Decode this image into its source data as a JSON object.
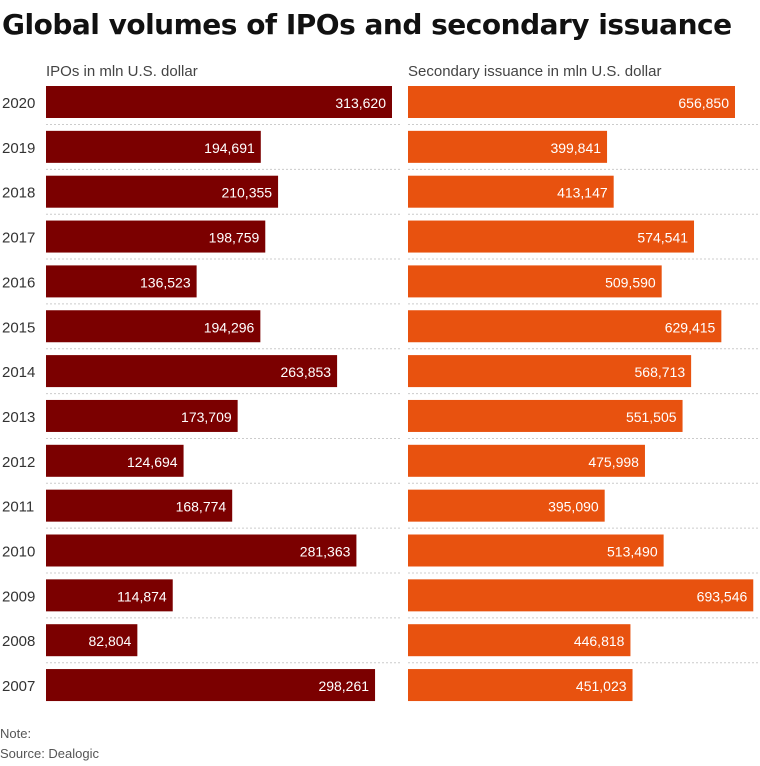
{
  "chart_data": {
    "type": "bar",
    "orientation": "horizontal",
    "title": "Global volumes of IPOs and secondary issuance",
    "categories": [
      "2020",
      "2019",
      "2018",
      "2017",
      "2016",
      "2015",
      "2014",
      "2013",
      "2012",
      "2011",
      "2010",
      "2009",
      "2008",
      "2007"
    ],
    "series": [
      {
        "name": "IPOs in mln U.S. dollar",
        "color": "#7b0000",
        "values": [
          313620,
          194691,
          210355,
          198759,
          136523,
          194296,
          263853,
          173709,
          124694,
          168774,
          281363,
          114874,
          82804,
          298261
        ],
        "labels": [
          "313,620",
          "194,691",
          "210,355",
          "198,759",
          "136,523",
          "194,296",
          "263,853",
          "173,709",
          "124,694",
          "168,774",
          "281,363",
          "114,874",
          "82,804",
          "298,261"
        ]
      },
      {
        "name": "Secondary issuance in mln U.S. dollar",
        "color": "#e8520f",
        "values": [
          656850,
          399841,
          413147,
          574541,
          509590,
          629415,
          568713,
          551505,
          475998,
          395090,
          513490,
          693546,
          446818,
          451023
        ],
        "labels": [
          "656,850",
          "399,841",
          "413,147",
          "574,541",
          "509,590",
          "629,415",
          "568,713",
          "551,505",
          "475,998",
          "395,090",
          "513,490",
          "693,546",
          "446,818",
          "451,023"
        ]
      }
    ],
    "gridlines": "dotted row separators"
  },
  "footer": {
    "note": "Note:",
    "source": "Source: Dealogic"
  }
}
